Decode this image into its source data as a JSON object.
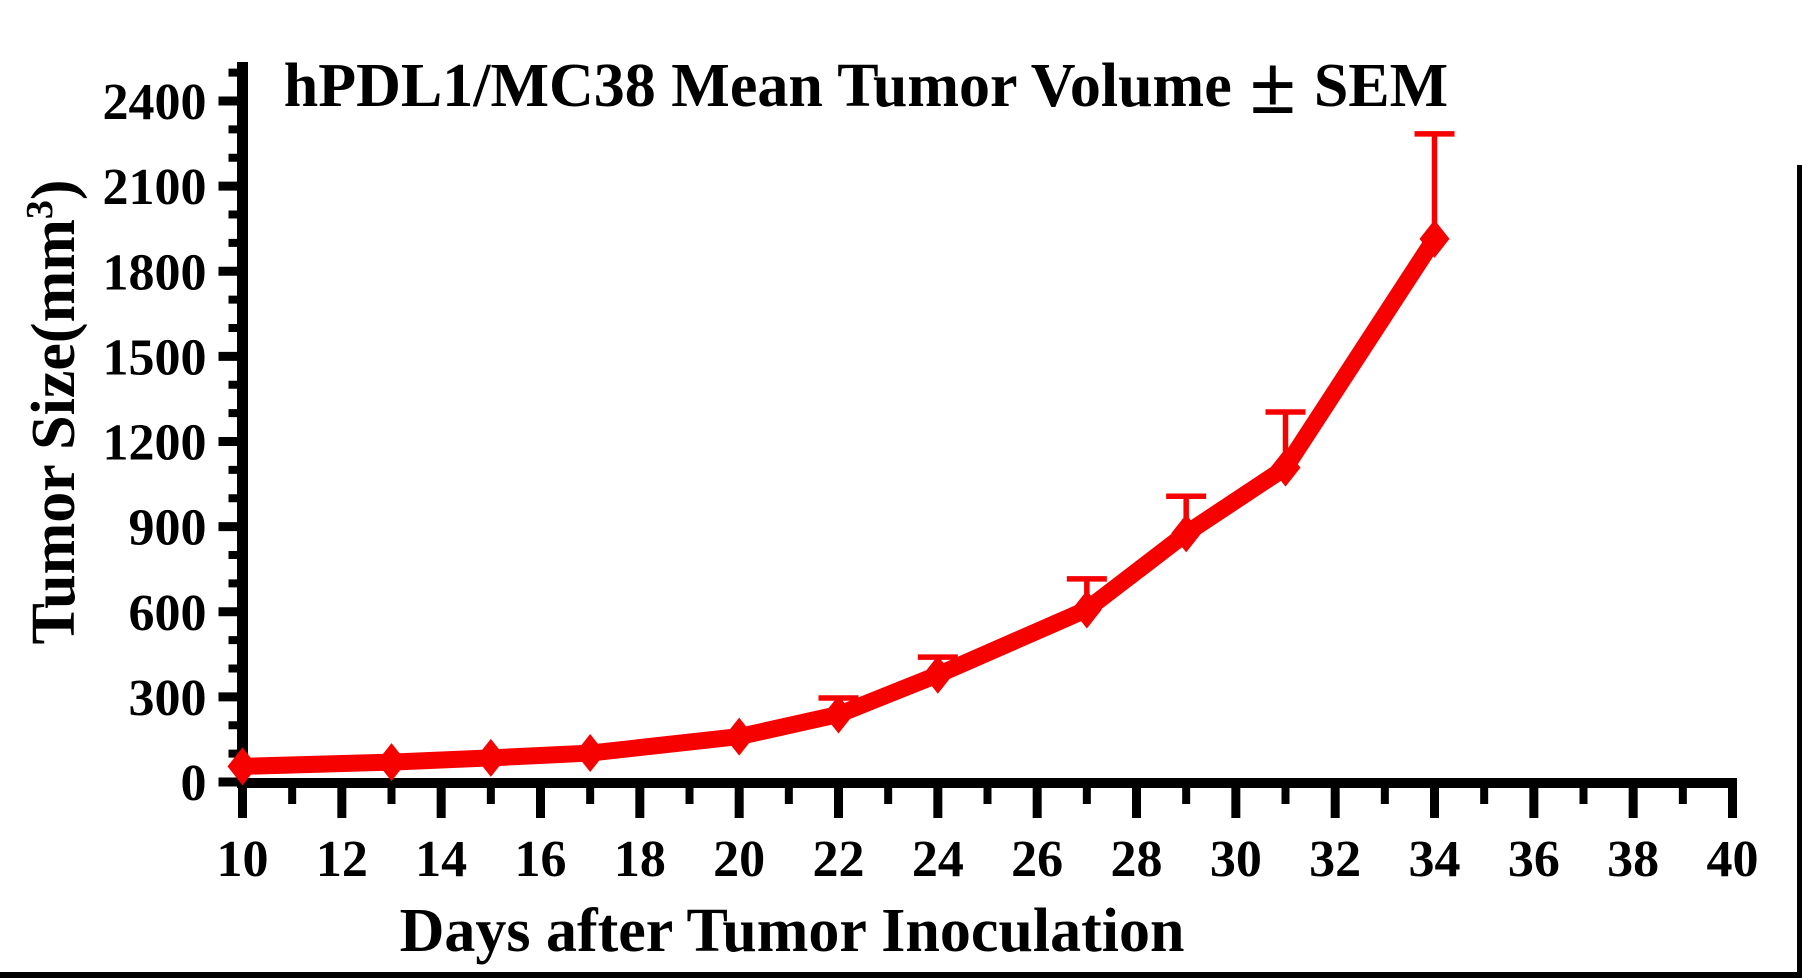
{
  "page": {
    "background_color": "#ffffff",
    "border_color": "#000000"
  },
  "chart_data": {
    "type": "line",
    "title": "hPDL1/MC38 Mean Tumor Volume ± SEM",
    "xlabel": "Days after Tumor Inoculation",
    "ylabel": "Tumor Size(mm³)",
    "grid": false,
    "legend": false,
    "axis_color": "#000000",
    "x_axis": {
      "min": 10,
      "max": 40,
      "major_ticks": [
        10,
        12,
        14,
        16,
        18,
        20,
        22,
        24,
        26,
        28,
        30,
        32,
        34,
        36,
        38,
        40
      ],
      "major_tick_labels": [
        "10",
        "12",
        "14",
        "16",
        "18",
        "20",
        "22",
        "24",
        "26",
        "28",
        "30",
        "32",
        "34",
        "36",
        "38",
        "40"
      ],
      "minor_ticks": [
        11,
        13,
        15,
        17,
        19,
        21,
        23,
        25,
        27,
        29,
        31,
        33,
        35,
        37,
        39
      ]
    },
    "y_axis": {
      "min": 0,
      "max": 2400,
      "axis_top_value": 2500,
      "major_ticks": [
        0,
        300,
        600,
        900,
        1200,
        1500,
        1800,
        2100,
        2400
      ],
      "major_tick_labels": [
        "0",
        "300",
        "600",
        "900",
        "1200",
        "1500",
        "1800",
        "2100",
        "2400"
      ],
      "minor_ticks": [
        100,
        200,
        400,
        500,
        700,
        800,
        1000,
        1100,
        1300,
        1400,
        1600,
        1700,
        1900,
        2000,
        2200,
        2300,
        2500
      ]
    },
    "series": [
      {
        "name": "hPDL1/MC38",
        "color": "#f60000",
        "marker": "diamond",
        "error_bars": "upper-SEM",
        "x": [
          10,
          13,
          15,
          17,
          20,
          22,
          24,
          27,
          29,
          31,
          34
        ],
        "y": [
          55,
          70,
          85,
          102,
          160,
          238,
          378,
          608,
          876,
          1108,
          1914
        ],
        "sem_upper": [
          0,
          0,
          0,
          0,
          0,
          58,
          62,
          108,
          131,
          196,
          370
        ]
      }
    ]
  }
}
